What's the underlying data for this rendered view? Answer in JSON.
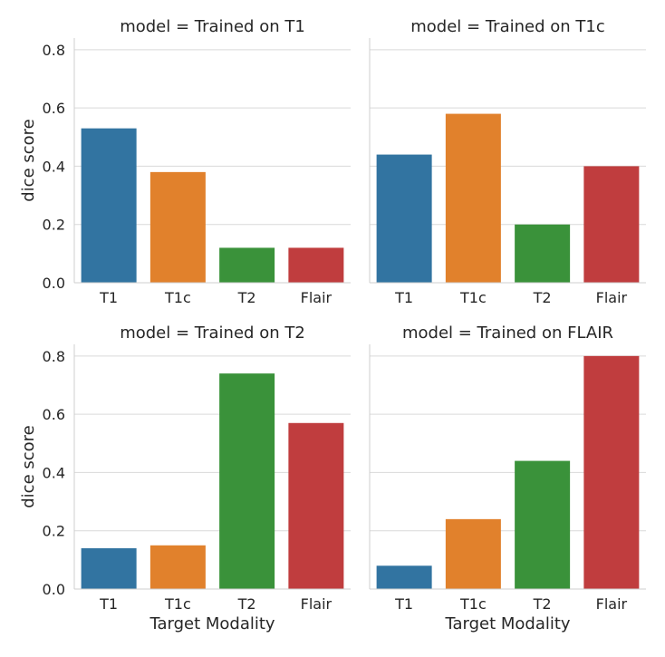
{
  "chart_data": {
    "type": "bar",
    "categories": [
      "T1",
      "T1c",
      "T2",
      "Flair"
    ],
    "colors": [
      "#3274a1",
      "#e1812c",
      "#3a923a",
      "#c03d3e"
    ],
    "ylim": [
      0,
      0.84
    ],
    "yticks": [
      "0.0",
      "0.2",
      "0.4",
      "0.6",
      "0.8"
    ],
    "ytick_values": [
      0,
      0.2,
      0.4,
      0.6,
      0.8
    ],
    "ylabel": "dice score",
    "xlabel": "Target Modality",
    "grid": true,
    "panels": [
      {
        "title": "model = Trained on T1",
        "values": [
          0.53,
          0.38,
          0.12,
          0.12
        ]
      },
      {
        "title": "model = Trained on T1c",
        "values": [
          0.44,
          0.58,
          0.2,
          0.4
        ]
      },
      {
        "title": "model = Trained on T2",
        "values": [
          0.14,
          0.15,
          0.74,
          0.57
        ]
      },
      {
        "title": "model = Trained on FLAIR",
        "values": [
          0.08,
          0.24,
          0.44,
          0.8
        ]
      }
    ]
  }
}
